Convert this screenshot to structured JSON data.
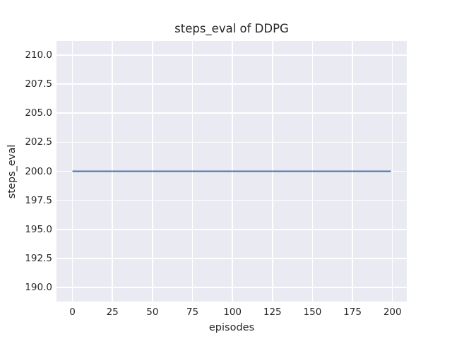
{
  "chart_data": {
    "type": "line",
    "title": "steps_eval of DDPG",
    "xlabel": "episodes",
    "ylabel": "steps_eval",
    "xlim": [
      -9.95,
      208.95
    ],
    "ylim": [
      188.8,
      211.2
    ],
    "xticks": [
      0,
      25,
      50,
      75,
      100,
      125,
      150,
      175,
      200
    ],
    "xtick_labels": [
      "0",
      "25",
      "50",
      "75",
      "100",
      "125",
      "150",
      "175",
      "200"
    ],
    "yticks": [
      190.0,
      192.5,
      195.0,
      197.5,
      200.0,
      202.5,
      205.0,
      207.5,
      210.0
    ],
    "ytick_labels": [
      "190.0",
      "192.5",
      "195.0",
      "197.5",
      "200.0",
      "202.5",
      "205.0",
      "207.5",
      "210.0"
    ],
    "grid": true,
    "legend": false,
    "style": "seaborn-darkgrid",
    "plot_bg_color": "#eaeaf2",
    "grid_color": "#ffffff",
    "text_color": "#262626",
    "series": [
      {
        "name": "steps_eval",
        "color": "#4c72b0",
        "linewidth": 2,
        "x": [
          0,
          199
        ],
        "y": [
          200,
          200
        ]
      }
    ]
  }
}
